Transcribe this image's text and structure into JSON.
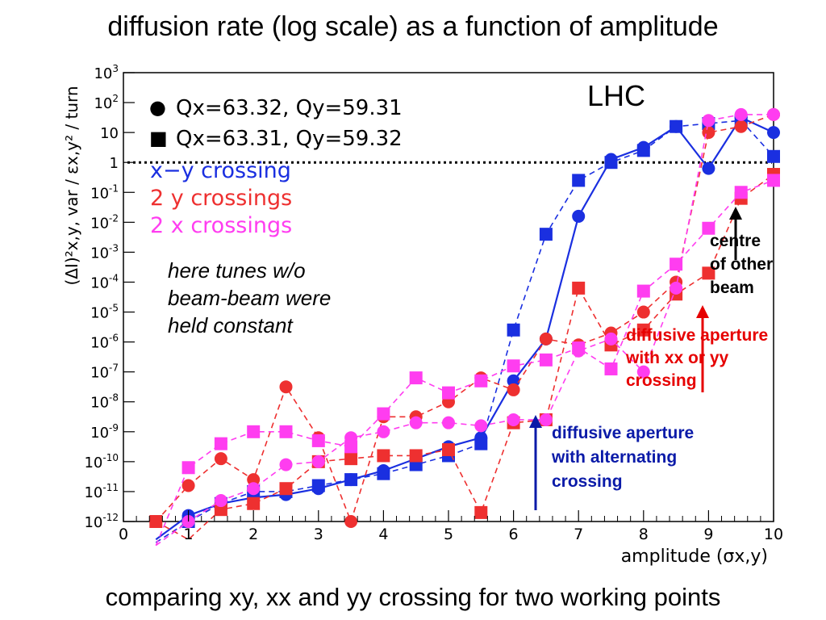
{
  "title": "diffusion rate (log scale) as a function of amplitude",
  "footer": "comparing xy, xx and yy crossing for two working points",
  "plot_label": "LHC",
  "note_black": [
    "here tunes w/o",
    "beam-beam were",
    "held constant"
  ],
  "note_red": [
    "diffusive aperture",
    "with xx or yy",
    "crossing"
  ],
  "note_blue": [
    "diffusive aperture",
    "with alternating",
    "crossing"
  ],
  "note_centre": [
    "centre",
    "of other",
    "beam"
  ],
  "colors": {
    "blue": "#1a2fe0",
    "red": "#ee3030",
    "magenta": "#ff3df0",
    "arrow_blue": "#0a1aa8",
    "arrow_red": "#e60000"
  },
  "chart_data": {
    "type": "line",
    "xlabel": "amplitude (σx,y)",
    "ylabel": "(ΔI)²x,y, var / εx,y² / turn",
    "xlim": [
      0,
      10
    ],
    "ylim_log10": [
      -12,
      3
    ],
    "xticks": [
      "0",
      "1",
      "2",
      "3",
      "4",
      "5",
      "6",
      "7",
      "8",
      "9",
      "10"
    ],
    "yticks": [
      "10-12",
      "10-11",
      "10-10",
      "10-9",
      "10-8",
      "10-7",
      "10-6",
      "10-5",
      "10-4",
      "10-3",
      "10-2",
      "10-1",
      "1",
      "10",
      "102",
      "103"
    ],
    "reference_line_y": 1,
    "legend": {
      "markers": [
        {
          "symbol": "●",
          "label": "Qx=63.32, Qy=59.31"
        },
        {
          "symbol": "■",
          "label": "Qx=63.31, Qy=59.32"
        }
      ],
      "colors": [
        {
          "color": "#1a2fe0",
          "label": "x−y crossing"
        },
        {
          "color": "#ee3030",
          "label": "2 y crossings"
        },
        {
          "color": "#ff3df0",
          "label": "2 x crossings"
        }
      ]
    },
    "series": [
      {
        "color": "#1a2fe0",
        "marker": "circle",
        "style": "solid",
        "x": [
          0.5,
          1,
          1.5,
          2,
          2.5,
          3,
          3.5,
          4,
          4.5,
          5,
          5.5,
          6,
          6.5,
          7,
          7.5,
          8,
          8.5,
          9,
          9.5,
          10
        ],
        "y": [
          -12.6,
          -11.8,
          -11.4,
          -11.2,
          -11.1,
          -10.9,
          -10.6,
          -10.3,
          -9.9,
          -9.5,
          -9.2,
          -7.3,
          -5.9,
          -1.8,
          0.1,
          0.5,
          1.2,
          -0.2,
          1.5,
          1.0
        ]
      },
      {
        "color": "#1a2fe0",
        "marker": "square",
        "style": "dashed",
        "x": [
          0.5,
          1,
          1.5,
          2,
          2.5,
          3,
          3.5,
          4,
          4.5,
          5,
          5.5,
          6,
          6.5,
          7,
          7.5,
          8,
          8.5,
          9,
          9.5,
          10
        ],
        "y": [
          -12.7,
          -12.0,
          -11.4,
          -11.0,
          -11.0,
          -10.8,
          -10.6,
          -10.4,
          -10.1,
          -9.8,
          -9.4,
          -5.6,
          -2.4,
          -0.6,
          0.0,
          0.4,
          1.2,
          1.3,
          1.4,
          0.2
        ]
      },
      {
        "color": "#ee3030",
        "marker": "circle",
        "style": "dashed",
        "x": [
          0.5,
          1,
          1.5,
          2,
          2.5,
          3,
          3.5,
          4,
          4.5,
          5,
          5.5,
          6,
          6.5,
          7,
          7.5,
          8,
          8.5,
          9,
          9.5,
          10
        ],
        "y": [
          -12,
          -10.8,
          -9.9,
          -10.6,
          -7.5,
          -9.2,
          -12,
          -8.5,
          -8.5,
          -8.0,
          -7.2,
          -7.6,
          -5.9,
          -6.1,
          -5.7,
          -5.0,
          -4.0,
          1.0,
          1.2,
          1.6
        ]
      },
      {
        "color": "#ee3030",
        "marker": "square",
        "style": "dashed",
        "x": [
          0.5,
          1,
          1.5,
          2,
          2.5,
          3,
          3.5,
          4,
          4.5,
          5,
          5.5,
          6,
          6.5,
          7,
          7.5,
          8,
          8.5,
          9,
          9.5,
          10
        ],
        "y": [
          -12,
          -12.6,
          -11.6,
          -11.4,
          -10.9,
          -10.0,
          -9.9,
          -9.8,
          -9.8,
          -9.6,
          -11.7,
          -8.7,
          -8.6,
          -4.2,
          -6.1,
          -5.6,
          -4.4,
          -3.7,
          -1.2,
          -0.4
        ]
      },
      {
        "color": "#ff3df0",
        "marker": "circle",
        "style": "dashed",
        "x": [
          0.5,
          1,
          1.5,
          2,
          2.5,
          3,
          3.5,
          4,
          4.5,
          5,
          5.5,
          6,
          6.5,
          7,
          7.5,
          8,
          8.5,
          9,
          9.5,
          10
        ],
        "y": [
          -12.8,
          -12.0,
          -11.3,
          -10.9,
          -10.1,
          -10.0,
          -9.2,
          -9.0,
          -8.7,
          -8.7,
          -8.8,
          -8.6,
          -8.6,
          -6.3,
          -5.9,
          -7.0,
          -4.2,
          1.4,
          1.6,
          1.6
        ]
      },
      {
        "color": "#ff3df0",
        "marker": "square",
        "style": "dashed",
        "x": [
          0.5,
          1,
          1.5,
          2,
          2.5,
          3,
          3.5,
          4,
          4.5,
          5,
          5.5,
          6,
          6.5,
          7,
          7.5,
          8,
          8.5,
          9,
          9.5,
          10
        ],
        "y": [
          -12.8,
          -10.2,
          -9.4,
          -9.0,
          -9.0,
          -9.3,
          -9.5,
          -8.4,
          -7.2,
          -7.7,
          -7.3,
          -6.8,
          -6.6,
          -6.2,
          -6.9,
          -4.3,
          -3.4,
          -2.2,
          -1.0,
          -0.6
        ]
      }
    ]
  }
}
